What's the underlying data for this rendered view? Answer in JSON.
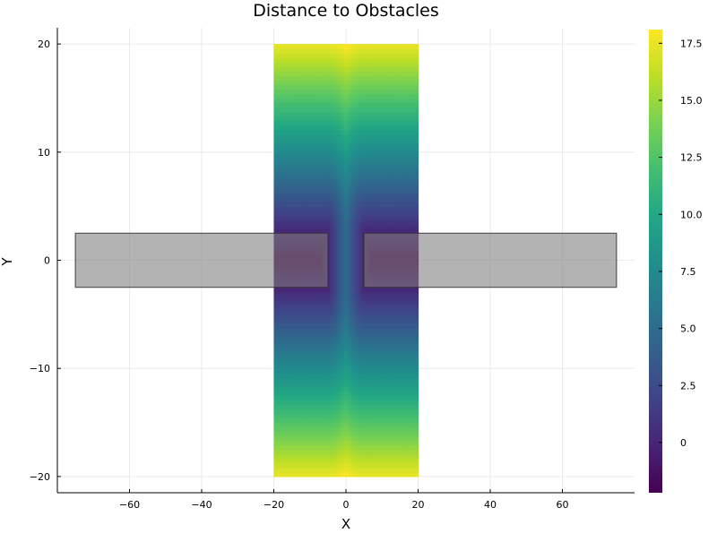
{
  "chart_data": {
    "type": "heatmap",
    "title": "Distance to Obstacles",
    "xlabel": "X",
    "ylabel": "Y",
    "xlim": [
      -80,
      80
    ],
    "ylim": [
      -21.5,
      21.5
    ],
    "x_ticks": [
      -60,
      -40,
      -20,
      0,
      20,
      40,
      60
    ],
    "y_ticks": [
      -20,
      -10,
      0,
      10,
      20
    ],
    "x_tick_labels": [
      "−60",
      "−40",
      "−20",
      "0",
      "20",
      "40",
      "60"
    ],
    "y_tick_labels": [
      "−20",
      "−10",
      "0",
      "10",
      "20"
    ],
    "grid": true,
    "legend": "none",
    "heatmap": {
      "x_range": [
        -20,
        20
      ],
      "y_range": [
        -20,
        20
      ],
      "description_value": "signed distance to nearest obstacle",
      "value_range": [
        -2.2,
        18.1
      ],
      "colormap": "viridis"
    },
    "obstacles": [
      {
        "x": [
          -75,
          -5
        ],
        "y": [
          -2.5,
          2.5
        ]
      },
      {
        "x": [
          5,
          75
        ],
        "y": [
          -2.5,
          2.5
        ]
      }
    ],
    "obstacle_color": "#808080",
    "colorbar": {
      "ticks": [
        0,
        2.5,
        5,
        7.5,
        10,
        12.5,
        15,
        17.5
      ],
      "tick_labels": [
        "0",
        "2.5",
        "5.0",
        "7.5",
        "10.0",
        "12.5",
        "15.0",
        "17.5"
      ],
      "range": [
        -2.2,
        18.1
      ]
    }
  }
}
